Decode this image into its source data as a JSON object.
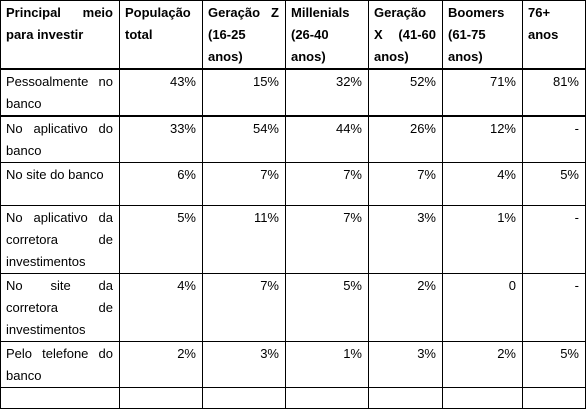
{
  "table": {
    "headers": [
      "Principal meio para investir",
      "População total",
      "Geração Z (16-25 anos)",
      "Millenials (26-40 anos)",
      "Geração X (41-60 anos)",
      "Boomers (61-75 anos)",
      "76+ anos"
    ],
    "rows": [
      {
        "label": "Pessoalmente no banco",
        "values": [
          "43%",
          "15%",
          "32%",
          "52%",
          "71%",
          "81%"
        ]
      },
      {
        "label": "No aplicativo do banco",
        "values": [
          "33%",
          "54%",
          "44%",
          "26%",
          "12%",
          "-"
        ]
      },
      {
        "label": "No site do banco",
        "values": [
          "6%",
          "7%",
          "7%",
          "7%",
          "4%",
          "5%"
        ]
      },
      {
        "label": "No aplicativo da corretora de investimentos",
        "values": [
          "5%",
          "11%",
          "7%",
          "3%",
          "1%",
          "-"
        ]
      },
      {
        "label": "No site da corretora de investimentos",
        "values": [
          "4%",
          "7%",
          "5%",
          "2%",
          "0",
          "-"
        ]
      },
      {
        "label": "Pelo telefone do banco",
        "values": [
          "2%",
          "3%",
          "1%",
          "3%",
          "2%",
          "5%"
        ]
      },
      {
        "label": "",
        "values": [
          "",
          "",
          "",
          "",
          "",
          ""
        ]
      }
    ]
  }
}
